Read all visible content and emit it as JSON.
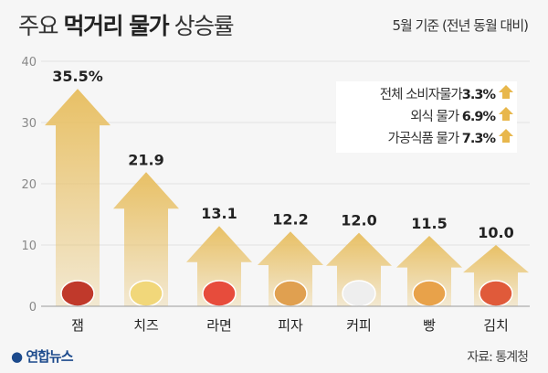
{
  "header": {
    "title_part1": "주요",
    "title_bold": "먹거리 물가",
    "title_part2": "상승률",
    "subtitle": "5월 기준 (전년 동월 대비)"
  },
  "legend": [
    {
      "label": "전체 소비자물가",
      "value": "3.3%",
      "icon": "up-arrow-icon"
    },
    {
      "label": "외식 물가",
      "value": "6.9%",
      "icon": "up-arrow-icon"
    },
    {
      "label": "가공식품 물가",
      "value": "7.3%",
      "icon": "up-arrow-icon"
    }
  ],
  "chart_data": {
    "type": "bar",
    "title": "주요 먹거리 물가 상승률",
    "categories": [
      "잼",
      "치즈",
      "라면",
      "피자",
      "커피",
      "빵",
      "김치"
    ],
    "values": [
      35.5,
      21.9,
      13.1,
      12.2,
      12.0,
      11.5,
      10.0
    ],
    "value_labels": [
      "35.5%",
      "21.9",
      "13.1",
      "12.2",
      "12.0",
      "11.5",
      "10.0"
    ],
    "ylim": [
      0,
      40
    ],
    "yticks": [
      "0",
      "10",
      "20",
      "30",
      "40"
    ],
    "grid": true,
    "bar_color": "#e8c065"
  },
  "footer": {
    "brand": "연합뉴스",
    "source": "자료: 통계청"
  }
}
